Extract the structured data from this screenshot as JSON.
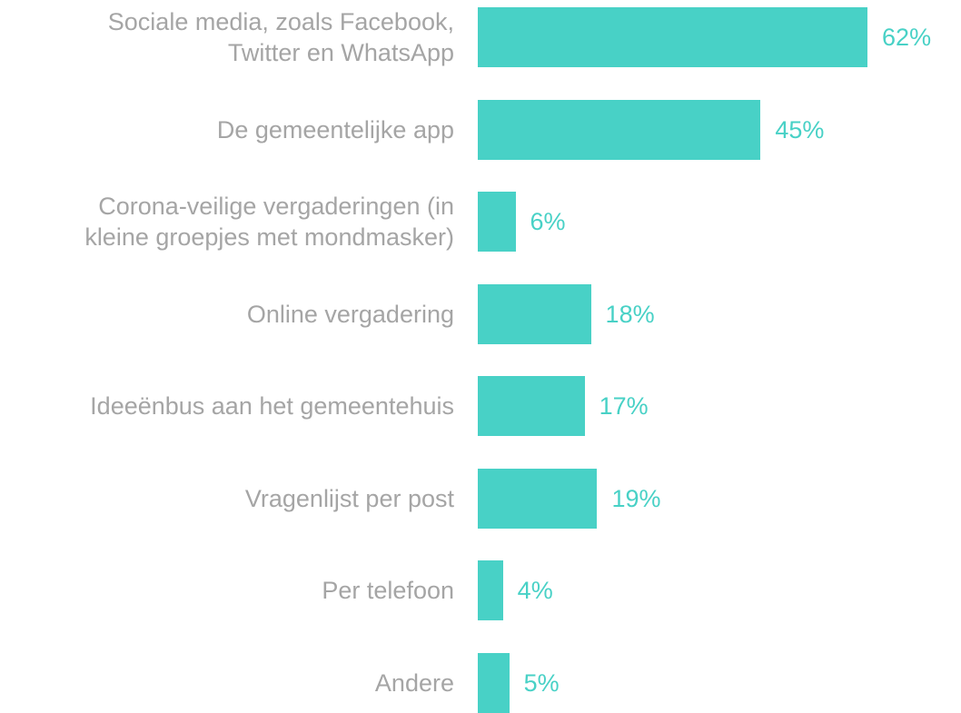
{
  "chart_data": {
    "type": "bar",
    "orientation": "horizontal",
    "color": "#48d1c6",
    "categories": [
      "Sociale media, zoals Facebook,\nTwitter en WhatsApp",
      "De gemeentelijke app",
      "Corona-veilige vergaderingen (in\nkleine groepjes met mondmasker)",
      "Online vergadering",
      "Ideeënbus aan het gemeentehuis",
      "Vragenlijst per post",
      "Per telefoon",
      "Andere"
    ],
    "values": [
      62,
      45,
      6,
      18,
      17,
      19,
      4,
      5
    ],
    "value_labels": [
      "62%",
      "45%",
      "6%",
      "18%",
      "17%",
      "19%",
      "4%",
      "5%"
    ]
  }
}
